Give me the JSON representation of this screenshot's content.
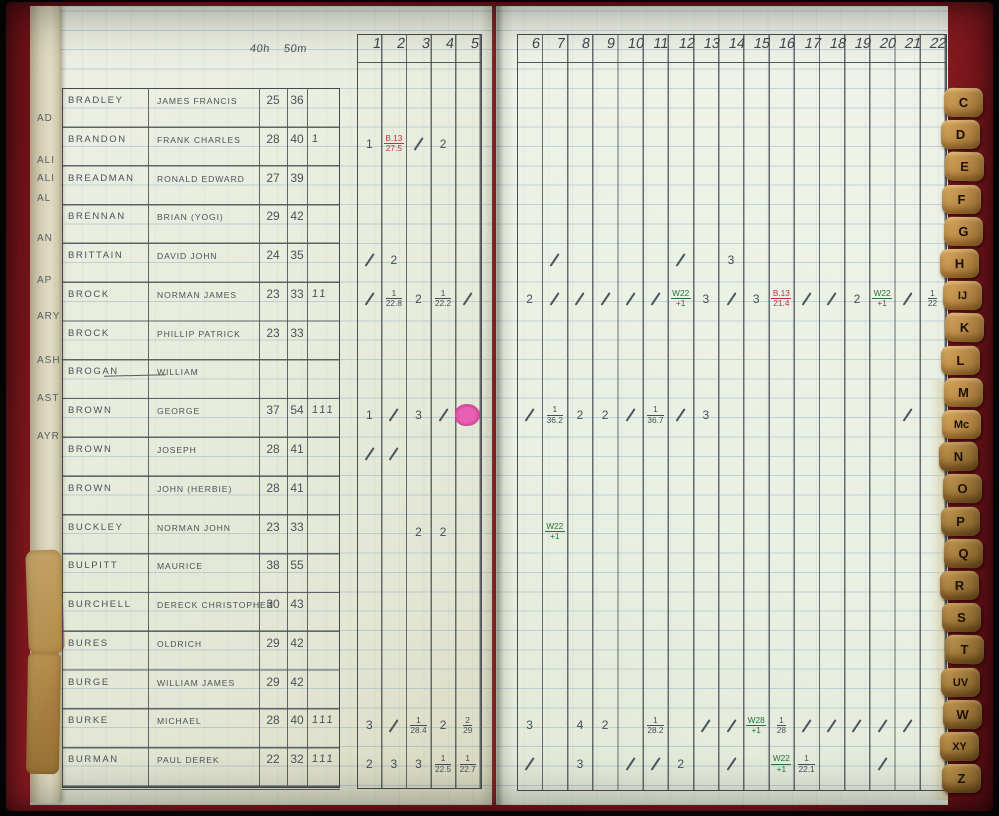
{
  "book": {
    "header": {
      "col1_label": "40h",
      "col2_label": "50m",
      "left_game_cols": [
        "1",
        "2",
        "3",
        "4",
        "5"
      ],
      "right_game_cols": [
        "6",
        "7",
        "8",
        "9",
        "10",
        "11",
        "12",
        "13",
        "14",
        "15",
        "16",
        "17",
        "18",
        "19",
        "20",
        "21",
        "22"
      ]
    },
    "rows": [
      {
        "surname": "BRADLEY",
        "forename": "JAMES FRANCIS",
        "v40": "25",
        "v50": "36",
        "tally": "",
        "marks": []
      },
      {
        "surname": "BRANDON",
        "forename": "FRANK CHARLES",
        "v40": "28",
        "v50": "40",
        "tally": "1",
        "marks": [
          {
            "col": 1,
            "text": "1"
          },
          {
            "col": 2,
            "frac": [
              "B.13",
              "27.5"
            ],
            "ink": "red"
          },
          {
            "col": 3,
            "slash": true
          },
          {
            "col": 4,
            "text": "2"
          }
        ]
      },
      {
        "surname": "BREADMAN",
        "forename": "RONALD EDWARD",
        "v40": "27",
        "v50": "39",
        "tally": "",
        "marks": []
      },
      {
        "surname": "BRENNAN",
        "forename": "BRIAN (YOGI)",
        "v40": "29",
        "v50": "42",
        "tally": "",
        "marks": []
      },
      {
        "surname": "BRITTAIN",
        "forename": "DAVID JOHN",
        "v40": "24",
        "v50": "35",
        "tally": "",
        "marks": [
          {
            "col": 1,
            "slash": true
          },
          {
            "col": 2,
            "text": "2"
          },
          {
            "col": 7,
            "slash": true
          },
          {
            "col": 12,
            "slash": true
          },
          {
            "col": 14,
            "text": "3"
          }
        ]
      },
      {
        "surname": "BROCK",
        "forename": "NORMAN JAMES",
        "v40": "23",
        "v50": "33",
        "tally": "11",
        "marks": [
          {
            "col": 1,
            "slash": true
          },
          {
            "col": 2,
            "frac": [
              "1",
              "22.8"
            ]
          },
          {
            "col": 3,
            "text": "2"
          },
          {
            "col": 4,
            "frac": [
              "1",
              "22.2"
            ]
          },
          {
            "col": 5,
            "slash": true
          },
          {
            "col": 6,
            "text": "2"
          },
          {
            "col": 7,
            "slash": true
          },
          {
            "col": 8,
            "slash": true
          },
          {
            "col": 9,
            "slash": true
          },
          {
            "col": 10,
            "slash": true
          },
          {
            "col": 11,
            "slash": true
          },
          {
            "col": 12,
            "frac": [
              "W22",
              "+1"
            ],
            "ink": "green"
          },
          {
            "col": 13,
            "text": "3"
          },
          {
            "col": 14,
            "slash": true
          },
          {
            "col": 15,
            "text": "3"
          },
          {
            "col": 16,
            "frac": [
              "B.13",
              "21.4"
            ],
            "ink": "red"
          },
          {
            "col": 17,
            "slash": true
          },
          {
            "col": 18,
            "slash": true
          },
          {
            "col": 19,
            "text": "2"
          },
          {
            "col": 20,
            "frac": [
              "W22",
              "+1"
            ],
            "ink": "green"
          },
          {
            "col": 21,
            "slash": true
          },
          {
            "col": 22,
            "frac": [
              "1",
              "22"
            ]
          }
        ]
      },
      {
        "surname": "BROCK",
        "forename": "PHILLIP PATRICK",
        "v40": "23",
        "v50": "33",
        "tally": "",
        "marks": []
      },
      {
        "surname": "BROGAN",
        "forename": "WILLIAM",
        "v40": "",
        "v50": "",
        "tally": "",
        "dash": true,
        "marks": []
      },
      {
        "surname": "BROWN",
        "forename": "GEORGE",
        "v40": "37",
        "v50": "54",
        "tally": "111",
        "marks": [
          {
            "col": 1,
            "text": "1"
          },
          {
            "col": 2,
            "slash": true
          },
          {
            "col": 3,
            "text": "3"
          },
          {
            "col": 4,
            "slash": true
          },
          {
            "col": 5,
            "blot": true
          },
          {
            "col": 6,
            "slash": true
          },
          {
            "col": 7,
            "frac": [
              "1",
              "36.2"
            ]
          },
          {
            "col": 8,
            "text": "2"
          },
          {
            "col": 9,
            "text": "2"
          },
          {
            "col": 10,
            "slash": true
          },
          {
            "col": 11,
            "frac": [
              "1",
              "36.7"
            ]
          },
          {
            "col": 12,
            "slash": true
          },
          {
            "col": 13,
            "text": "3"
          },
          {
            "col": 21,
            "slash": true
          }
        ]
      },
      {
        "surname": "BROWN",
        "forename": "JOSEPH",
        "v40": "28",
        "v50": "41",
        "tally": "",
        "marks": [
          {
            "col": 1,
            "slash": true
          },
          {
            "col": 2,
            "slash": true
          }
        ]
      },
      {
        "surname": "BROWN",
        "forename": "JOHN (HERBIE)",
        "v40": "28",
        "v50": "41",
        "tally": "",
        "marks": []
      },
      {
        "surname": "BUCKLEY",
        "forename": "NORMAN JOHN",
        "v40": "23",
        "v50": "33",
        "tally": "",
        "marks": [
          {
            "col": 3,
            "text": "2"
          },
          {
            "col": 4,
            "text": "2"
          },
          {
            "col": 7,
            "frac": [
              "W22",
              "+1"
            ],
            "ink": "green"
          }
        ]
      },
      {
        "surname": "BULPITT",
        "forename": "MAURICE",
        "v40": "38",
        "v50": "55",
        "tally": "",
        "marks": []
      },
      {
        "surname": "BURCHELL",
        "forename": "DERECK CHRISTOPHER",
        "v40": "30",
        "v50": "43",
        "tally": "",
        "marks": []
      },
      {
        "surname": "BURES",
        "forename": "OLDRICH",
        "v40": "29",
        "v50": "42",
        "tally": "",
        "marks": []
      },
      {
        "surname": "BURGE",
        "forename": "WILLIAM JAMES",
        "v40": "29",
        "v50": "42",
        "tally": "",
        "marks": []
      },
      {
        "surname": "BURKE",
        "forename": "MICHAEL",
        "v40": "28",
        "v50": "40",
        "tally": "111",
        "marks": [
          {
            "col": 1,
            "text": "3"
          },
          {
            "col": 2,
            "slash": true
          },
          {
            "col": 3,
            "frac": [
              "1",
              "28.4"
            ]
          },
          {
            "col": 4,
            "text": "2"
          },
          {
            "col": 5,
            "frac": [
              "2",
              "29"
            ]
          },
          {
            "col": 6,
            "text": "3"
          },
          {
            "col": 8,
            "text": "4"
          },
          {
            "col": 9,
            "text": "2"
          },
          {
            "col": 11,
            "frac": [
              "1",
              "28.2"
            ]
          },
          {
            "col": 13,
            "slash": true
          },
          {
            "col": 14,
            "slash": true
          },
          {
            "col": 15,
            "frac": [
              "W28",
              "+1"
            ],
            "ink": "green"
          },
          {
            "col": 16,
            "frac": [
              "1",
              "28"
            ]
          },
          {
            "col": 17,
            "slash": true
          },
          {
            "col": 18,
            "slash": true
          },
          {
            "col": 19,
            "slash": true
          },
          {
            "col": 20,
            "slash": true
          },
          {
            "col": 21,
            "slash": true
          }
        ]
      },
      {
        "surname": "BURMAN",
        "forename": "PAUL DEREK",
        "v40": "22",
        "v50": "32",
        "tally": "111",
        "marks": [
          {
            "col": 1,
            "text": "2"
          },
          {
            "col": 2,
            "text": "3"
          },
          {
            "col": 3,
            "text": "3"
          },
          {
            "col": 4,
            "frac": [
              "1",
              "22.5"
            ]
          },
          {
            "col": 5,
            "frac": [
              "1",
              "22.7"
            ]
          },
          {
            "col": 6,
            "slash": true
          },
          {
            "col": 8,
            "text": "3"
          },
          {
            "col": 10,
            "slash": true
          },
          {
            "col": 11,
            "slash": true
          },
          {
            "col": 12,
            "text": "2"
          },
          {
            "col": 14,
            "slash": true
          },
          {
            "col": 16,
            "frac": [
              "W22",
              "+1"
            ],
            "ink": "green"
          },
          {
            "col": 17,
            "frac": [
              "1",
              "22.1"
            ]
          },
          {
            "col": 20,
            "slash": true
          }
        ]
      }
    ],
    "left_edge_words": [
      "AD",
      "ALI",
      "ALI",
      "AL",
      "AN",
      "AP",
      "ARY",
      "ASH",
      "AST",
      "AYR"
    ],
    "index_tabs": [
      "C",
      "D",
      "E",
      "F",
      "G",
      "H",
      "IJ",
      "K",
      "L",
      "M",
      "Mc",
      "N",
      "O",
      "P",
      "Q",
      "R",
      "S",
      "T",
      "UV",
      "W",
      "XY",
      "Z"
    ]
  },
  "colors": {
    "red_ink": "#c22f3e",
    "green_ink": "#25703a",
    "pencil": "#4a525a",
    "highlight_pink": "#e760b2",
    "cover_red": "#8c181e",
    "tab_tan": "#c3904a"
  }
}
